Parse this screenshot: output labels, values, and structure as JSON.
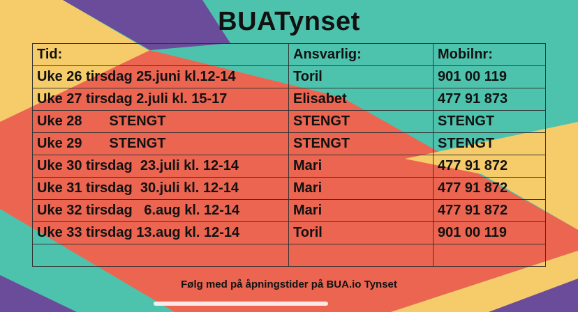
{
  "title": "BUATynset",
  "table": {
    "headers": [
      "Tid:",
      "Ansvarlig:",
      "Mobilnr:"
    ],
    "rows": [
      [
        "Uke 26 tirsdag 25.juni kl.12-14",
        "Toril",
        "901 00 119"
      ],
      [
        "Uke 27 tirsdag 2.juli kl. 15-17",
        "Elisabet",
        "477 91 873"
      ],
      [
        "Uke 28       STENGT",
        "STENGT",
        "STENGT"
      ],
      [
        "Uke 29       STENGT",
        "STENGT",
        "STENGT"
      ],
      [
        "Uke 30 tirsdag  23.juli kl. 12-14",
        "Mari",
        "477 91 872"
      ],
      [
        "Uke 31 tirsdag  30.juli kl. 12-14",
        "Mari",
        "477 91 872"
      ],
      [
        "Uke 32 tirsdag   6.aug kl. 12-14",
        "Mari",
        "477 91 872"
      ],
      [
        "Uke 33 tirsdag 13.aug kl. 12-14",
        "Toril",
        "901 00 119"
      ],
      [
        "",
        "",
        ""
      ]
    ]
  },
  "footer": "Følg med på åpningstider på BUA.io Tynset",
  "colors": {
    "teal": "#4dc3ae",
    "coral": "#ec6551",
    "yellow": "#f6cc6a",
    "purple": "#6a4c9a"
  }
}
